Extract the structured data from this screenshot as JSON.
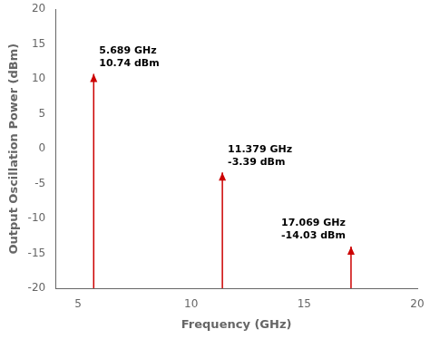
{
  "chart_data": {
    "type": "stem",
    "xlabel": "Frequency (GHz)",
    "ylabel": "Output Oscillation Power (dBm)",
    "x": [
      5.689,
      11.379,
      17.069
    ],
    "values": [
      10.74,
      -3.39,
      -14.03
    ],
    "color": "#cc0000",
    "xlim": [
      4,
      20
    ],
    "xticks": [
      5,
      10,
      15,
      20
    ],
    "ylim": [
      -20,
      20
    ],
    "yticks": [
      -20,
      -15,
      -10,
      -5,
      0,
      5,
      10,
      15,
      20
    ],
    "grid": false,
    "annotations": [
      {
        "x": 5.689,
        "y": 10.74,
        "text": [
          "5.689 GHz",
          "10.74 dBm"
        ]
      },
      {
        "x": 11.379,
        "y": -3.39,
        "text": [
          "11.379 GHz",
          "-3.39 dBm"
        ]
      },
      {
        "x": 17.069,
        "y": -14.03,
        "text": [
          "17.069 GHz",
          "-14.03 dBm"
        ]
      }
    ]
  }
}
